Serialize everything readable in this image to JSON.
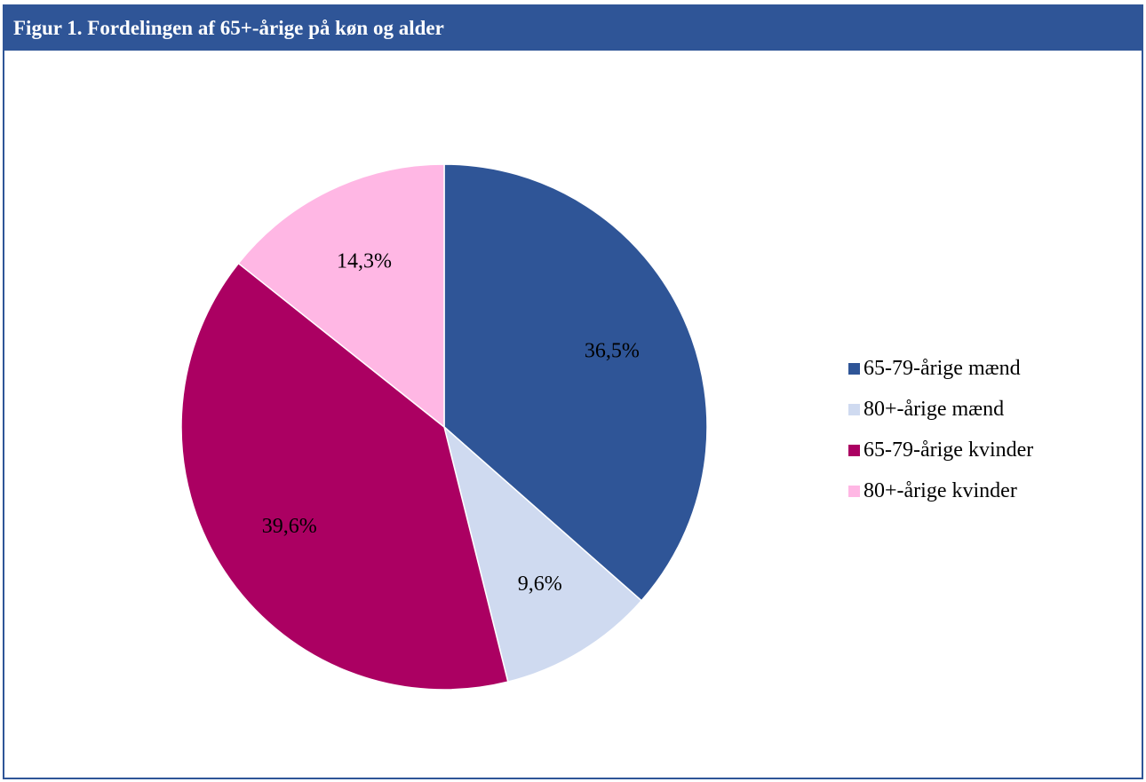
{
  "figure": {
    "title": "Figur 1. Fordelingen af 65+-årige på køn og alder"
  },
  "colors": {
    "header_bg": "#2f5597",
    "header_text": "#ffffff",
    "frame": "#2f5597"
  },
  "chart_data": {
    "type": "pie",
    "title": "Figur 1. Fordelingen af 65+-årige på køn og alder",
    "start": "12 o'clock, clockwise",
    "slices": [
      {
        "label": "65-79-årige mænd",
        "value": 36.5,
        "display": "36,5%",
        "color": "#2f5597"
      },
      {
        "label": "80+-årige mænd",
        "value": 9.6,
        "display": "9,6%",
        "color": "#cfdaf0"
      },
      {
        "label": "65-79-årige kvinder",
        "value": 39.6,
        "display": "39,6%",
        "color": "#ab0062"
      },
      {
        "label": "80+-årige kvinder",
        "value": 14.3,
        "display": "14,3%",
        "color": "#ffb7e4"
      }
    ],
    "legend_position": "right"
  }
}
